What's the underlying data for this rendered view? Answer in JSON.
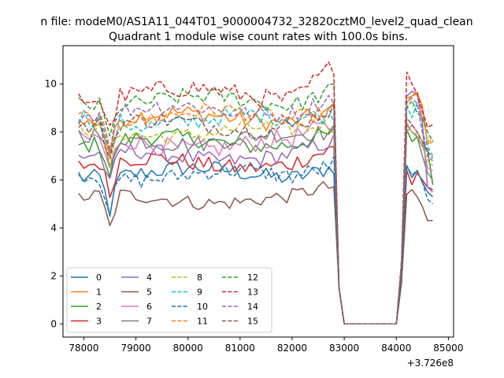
{
  "chart_data": {
    "type": "line",
    "suptitle": "n file: modeM0/AS1A11_044T01_9000004732_32820cztM0_level2_quad_clean",
    "title": "Quadrant 1 module wise count rates with 100.0s bins.",
    "xlabel": "",
    "ylabel": "",
    "x_offset_label": "+3.726e8",
    "xlim": [
      77600,
      85100
    ],
    "ylim": [
      -0.55,
      11.6
    ],
    "x_ticks": [
      78000,
      79000,
      80000,
      81000,
      82000,
      83000,
      84000,
      85000
    ],
    "x_tick_labels": [
      "78000",
      "79000",
      "80000",
      "81000",
      "82000",
      "83000",
      "84000",
      "85000"
    ],
    "y_ticks": [
      0,
      2,
      4,
      6,
      8,
      10
    ],
    "y_tick_labels": [
      "0",
      "2",
      "4",
      "6",
      "8",
      "10"
    ],
    "grid": false,
    "legend_position": "lower-left",
    "legend_columns": 4,
    "active_x_start": 77900,
    "active_x_end": 82800,
    "gap_x_start": 83000,
    "gap_x_end": 84000,
    "resume_x": 84200,
    "x_end": 84700,
    "series": [
      {
        "name": "0",
        "color": "#1f77b4",
        "dash": "solid",
        "level": 6.3,
        "amp": 0.35,
        "end_level": 6.6,
        "resume": [
          2.0,
          6.6,
          6.1,
          6.4,
          5.9,
          5.5,
          5.3
        ]
      },
      {
        "name": "1",
        "color": "#ff7f0e",
        "dash": "solid",
        "level": 8.6,
        "amp": 0.35,
        "end_level": 8.9,
        "resume": [
          2.4,
          9.2,
          9.5,
          9.6,
          9.1,
          7.5,
          7.6
        ]
      },
      {
        "name": "2",
        "color": "#2ca02c",
        "dash": "solid",
        "level": 7.6,
        "amp": 0.35,
        "end_level": 7.8,
        "resume": [
          2.2,
          8.1,
          7.6,
          7.8,
          7.4,
          7.3,
          5.8
        ]
      },
      {
        "name": "3",
        "color": "#d62728",
        "dash": "solid",
        "level": 6.7,
        "amp": 0.35,
        "end_level": 7.1,
        "resume": [
          2.0,
          6.4,
          5.8,
          6.3,
          6.0,
          5.7,
          5.6
        ]
      },
      {
        "name": "4",
        "color": "#9467bd",
        "dash": "solid",
        "level": 7.0,
        "amp": 0.35,
        "end_level": 7.4,
        "resume": [
          2.1,
          9.5,
          9.7,
          9.6,
          8.4,
          5.7,
          5.5
        ]
      },
      {
        "name": "5",
        "color": "#8c564b",
        "dash": "solid",
        "level": 5.2,
        "amp": 0.3,
        "end_level": 5.6,
        "resume": [
          1.7,
          5.4,
          5.6,
          5.3,
          4.9,
          4.3,
          4.3
        ]
      },
      {
        "name": "6",
        "color": "#e377c2",
        "dash": "solid",
        "level": 7.5,
        "amp": 0.4,
        "end_level": 8.2,
        "resume": [
          2.2,
          8.0,
          8.3,
          8.0,
          7.6,
          6.5,
          6.4
        ]
      },
      {
        "name": "7",
        "color": "#7f7f7f",
        "dash": "solid",
        "level": 7.7,
        "amp": 0.35,
        "end_level": 8.0,
        "resume": [
          2.2,
          8.3,
          8.0,
          7.8,
          7.0,
          6.3,
          6.0
        ]
      },
      {
        "name": "8",
        "color": "#bcbd22",
        "dash": "dashed",
        "level": 8.0,
        "amp": 0.35,
        "end_level": 8.4,
        "resume": [
          2.3,
          8.4,
          8.0,
          7.9,
          7.4,
          6.8,
          6.6
        ]
      },
      {
        "name": "9",
        "color": "#17becf",
        "dash": "dashed",
        "level": 8.5,
        "amp": 0.4,
        "end_level": 9.0,
        "resume": [
          2.4,
          9.1,
          8.6,
          9.2,
          8.0,
          7.4,
          7.0
        ]
      },
      {
        "name": "10",
        "color": "#1f77b4",
        "dash": "dashed",
        "level": 6.2,
        "amp": 0.35,
        "end_level": 6.9,
        "resume": [
          1.9,
          6.6,
          6.2,
          6.4,
          5.9,
          5.2,
          5.0
        ]
      },
      {
        "name": "11",
        "color": "#ff7f0e",
        "dash": "dashed",
        "level": 8.7,
        "amp": 0.35,
        "end_level": 9.1,
        "resume": [
          2.4,
          9.4,
          9.5,
          9.7,
          8.8,
          7.6,
          7.7
        ]
      },
      {
        "name": "12",
        "color": "#2ca02c",
        "dash": "dashed",
        "level": 9.3,
        "amp": 0.35,
        "end_level": 9.9,
        "resume": [
          2.5,
          9.0,
          9.3,
          8.8,
          8.6,
          8.0,
          7.6
        ]
      },
      {
        "name": "13",
        "color": "#d62728",
        "dash": "dashed",
        "level": 9.6,
        "amp": 0.4,
        "end_level": 10.8,
        "resume": [
          2.7,
          10.5,
          10.0,
          9.6,
          8.9,
          8.2,
          8.3
        ]
      },
      {
        "name": "14",
        "color": "#9467bd",
        "dash": "dashed",
        "level": 8.9,
        "amp": 0.35,
        "end_level": 9.4,
        "resume": [
          2.5,
          9.3,
          9.4,
          9.2,
          8.0,
          7.0,
          6.8
        ]
      },
      {
        "name": "15",
        "color": "#8c564b",
        "dash": "dashed",
        "level": 8.3,
        "amp": 0.35,
        "end_level": 8.8,
        "resume": [
          2.3,
          8.6,
          8.3,
          8.0,
          7.6,
          7.2,
          6.9
        ]
      }
    ]
  }
}
